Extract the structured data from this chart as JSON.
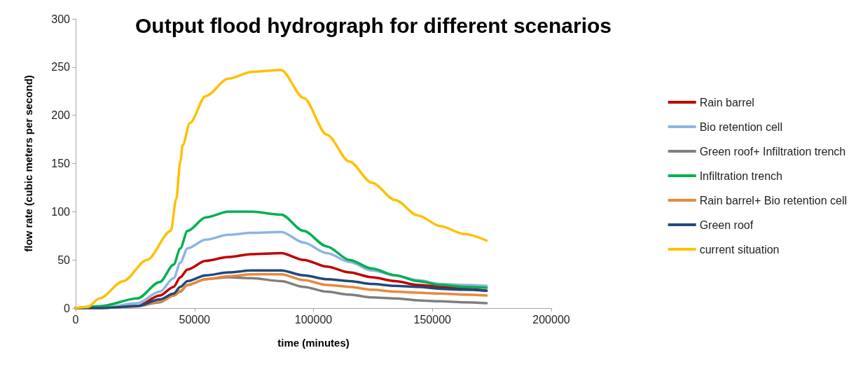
{
  "chart_data": {
    "type": "line",
    "title": "Output flood hydrograph for different scenarios",
    "xlabel": "time (minutes)",
    "ylabel": "flow rate (cubic meters per second)",
    "x": [
      0,
      10500,
      25900,
      35400,
      41200,
      44000,
      47000,
      54700,
      64200,
      74000,
      86400,
      95900,
      105600,
      115100,
      124600,
      134400,
      143900,
      153400,
      163200,
      172800
    ],
    "xlim": [
      0,
      200000
    ],
    "xticks": [
      0,
      50000,
      100000,
      150000,
      200000
    ],
    "ylim": [
      0,
      300
    ],
    "yticks": [
      0,
      50,
      100,
      150,
      200,
      250,
      300
    ],
    "grid": false,
    "legend": "right",
    "marker": "none",
    "line_style": "solid",
    "series": [
      {
        "name": "Rain barrel",
        "color": "#c00000",
        "values": [
          0,
          0,
          2,
          13,
          22,
          32,
          40,
          49,
          53,
          56,
          57,
          50,
          43,
          37,
          32,
          28,
          24,
          22,
          20,
          18
        ]
      },
      {
        "name": "Bio retention cell",
        "color": "#8db4e2",
        "values": [
          0,
          0,
          5,
          17,
          31,
          47,
          62,
          71,
          76,
          78,
          79,
          68,
          57,
          48,
          39,
          34,
          29,
          25,
          24,
          23
        ]
      },
      {
        "name": "Green roof+ Infiltration trench",
        "color": "#7f7f7f",
        "values": [
          0,
          0,
          2,
          6,
          13,
          17,
          24,
          30,
          32,
          31,
          28,
          22,
          17,
          14,
          11,
          10,
          8,
          7,
          6,
          5
        ]
      },
      {
        "name": "Infiltration trench",
        "color": "#00b050",
        "values": [
          0,
          2,
          10,
          27,
          45,
          62,
          80,
          94,
          100,
          100,
          97,
          80,
          64,
          50,
          41,
          34,
          28,
          24,
          22,
          21
        ]
      },
      {
        "name": "Rain barrel+ Bio retention cell",
        "color": "#e9883a",
        "values": [
          0,
          0,
          2,
          7,
          13,
          18,
          24,
          30,
          33,
          35,
          35,
          29,
          24,
          22,
          19,
          17,
          16,
          15,
          14,
          13
        ]
      },
      {
        "name": "Green roof",
        "color": "#1f497d",
        "values": [
          0,
          0,
          2,
          9,
          15,
          22,
          28,
          34,
          37,
          39,
          39,
          34,
          30,
          28,
          25,
          23,
          22,
          20,
          19,
          18
        ]
      },
      {
        "name": "current situation",
        "color": "#ffc000",
        "x": [
          0,
          5000,
          10000,
          20000,
          30000,
          40000,
          42300,
          44000,
          45000,
          48000,
          54700,
          64200,
          74000,
          86400,
          95900,
          105600,
          115100,
          124600,
          134400,
          143900,
          153400,
          163200,
          172800
        ],
        "values": [
          0,
          1,
          10,
          28,
          50,
          80,
          113,
          152,
          169,
          192,
          220,
          238,
          245,
          247,
          218,
          180,
          152,
          130,
          112,
          96,
          85,
          77,
          70
        ]
      }
    ]
  }
}
